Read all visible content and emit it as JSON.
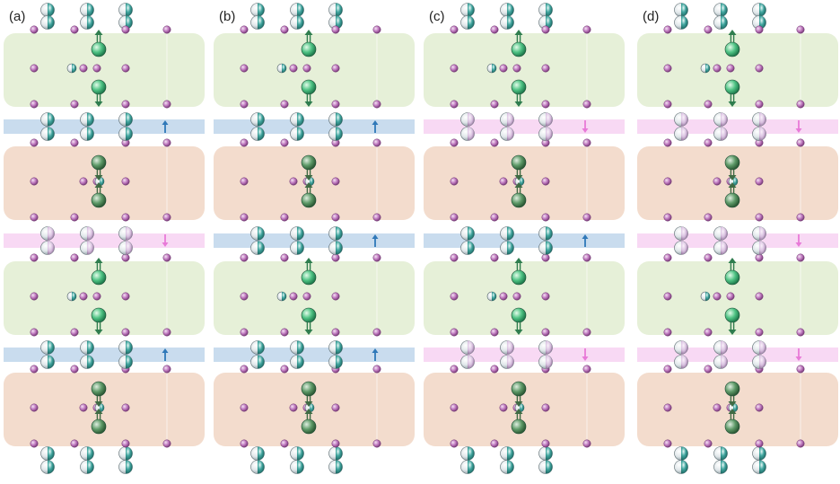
{
  "panels": [
    {
      "label": "(a)",
      "layers": [
        "green",
        "blue",
        "pink",
        "green",
        "blue",
        "pink"
      ],
      "thin_spins": [
        "up",
        "down",
        "up"
      ]
    },
    {
      "label": "(b)",
      "layers": [
        "green",
        "blue",
        "pink",
        "green",
        "blue",
        "pink"
      ],
      "thin_spins": [
        "up",
        "up",
        "up"
      ]
    },
    {
      "label": "(c)",
      "layers": [
        "green",
        "pink",
        "pink",
        "green",
        "pink",
        "pink"
      ],
      "thin_spins": [
        "down",
        "up",
        "down"
      ]
    },
    {
      "label": "(d)",
      "layers": [
        "green",
        "pink",
        "pink",
        "green",
        "pink",
        "pink"
      ],
      "thin_spins": [
        "down",
        "down",
        "down"
      ]
    }
  ],
  "colors": {
    "block_green": "#e6f0d8",
    "block_orange": "#f3dccd",
    "band_blue": "#c9dcee",
    "band_pink": "#f8d9f4",
    "arrow_blue": "#2f78b8",
    "arrow_pink": "#e87ad8",
    "atom_small": "#b46ab0",
    "atom_green": "#3fae78",
    "atom_dark_green": "#4f8a5c",
    "atom_teal": "#2e8f8a"
  }
}
